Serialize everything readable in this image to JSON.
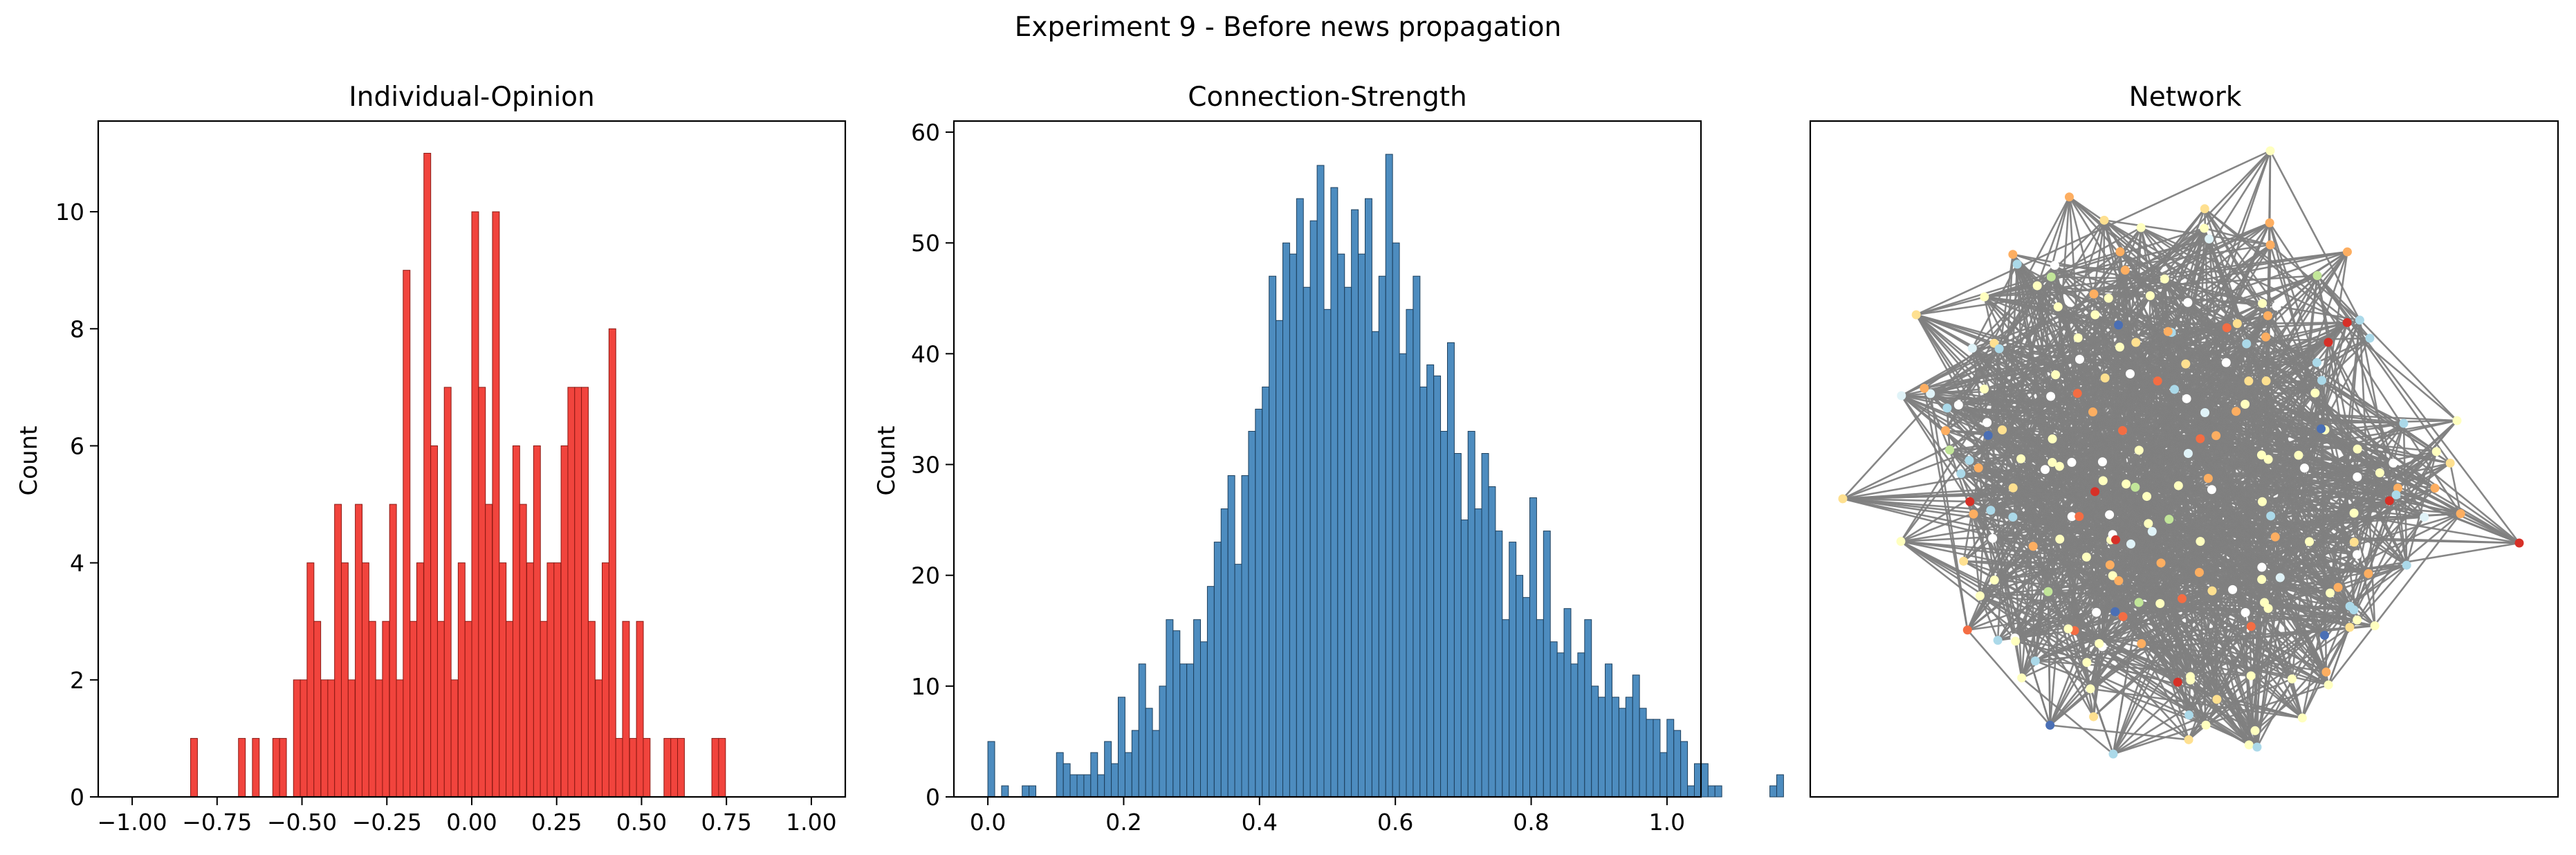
{
  "figure": {
    "suptitle": "Experiment 9 - Before news propagation"
  },
  "chart_data": [
    {
      "type": "bar",
      "title": "Individual-Opinion",
      "xlabel": "",
      "ylabel": "Count",
      "xlim": [
        -1.1,
        1.1
      ],
      "ylim": [
        0,
        11.55
      ],
      "bin_width": 0.0202,
      "xticks": [
        -1.0,
        -0.75,
        -0.5,
        -0.25,
        0.0,
        0.25,
        0.5,
        0.75,
        1.0
      ],
      "xtick_labels": [
        "−1.00",
        "−0.75",
        "−0.50",
        "−0.25",
        "0.00",
        "0.25",
        "0.50",
        "0.75",
        "1.00"
      ],
      "yticks": [
        0,
        2,
        4,
        6,
        8,
        10
      ],
      "ytick_labels": [
        "0",
        "2",
        "4",
        "6",
        "8",
        "10"
      ],
      "bar_color": "#f03028",
      "edge_color": "#8a1a14",
      "bins": [
        {
          "x": -0.828,
          "count": 1
        },
        {
          "x": -0.687,
          "count": 1
        },
        {
          "x": -0.646,
          "count": 1
        },
        {
          "x": -0.586,
          "count": 1
        },
        {
          "x": -0.566,
          "count": 1
        },
        {
          "x": -0.525,
          "count": 2
        },
        {
          "x": -0.505,
          "count": 2
        },
        {
          "x": -0.485,
          "count": 4
        },
        {
          "x": -0.465,
          "count": 3
        },
        {
          "x": -0.444,
          "count": 2
        },
        {
          "x": -0.424,
          "count": 2
        },
        {
          "x": -0.404,
          "count": 5
        },
        {
          "x": -0.384,
          "count": 4
        },
        {
          "x": -0.364,
          "count": 2
        },
        {
          "x": -0.343,
          "count": 5
        },
        {
          "x": -0.323,
          "count": 4
        },
        {
          "x": -0.303,
          "count": 3
        },
        {
          "x": -0.283,
          "count": 2
        },
        {
          "x": -0.263,
          "count": 3
        },
        {
          "x": -0.242,
          "count": 5
        },
        {
          "x": -0.222,
          "count": 2
        },
        {
          "x": -0.202,
          "count": 9
        },
        {
          "x": -0.182,
          "count": 3
        },
        {
          "x": -0.162,
          "count": 4
        },
        {
          "x": -0.141,
          "count": 11
        },
        {
          "x": -0.121,
          "count": 6
        },
        {
          "x": -0.101,
          "count": 3
        },
        {
          "x": -0.081,
          "count": 7
        },
        {
          "x": -0.061,
          "count": 2
        },
        {
          "x": -0.04,
          "count": 4
        },
        {
          "x": -0.02,
          "count": 3
        },
        {
          "x": 0.0,
          "count": 10
        },
        {
          "x": 0.02,
          "count": 7
        },
        {
          "x": 0.04,
          "count": 5
        },
        {
          "x": 0.061,
          "count": 10
        },
        {
          "x": 0.081,
          "count": 4
        },
        {
          "x": 0.101,
          "count": 3
        },
        {
          "x": 0.121,
          "count": 6
        },
        {
          "x": 0.141,
          "count": 5
        },
        {
          "x": 0.162,
          "count": 4
        },
        {
          "x": 0.182,
          "count": 6
        },
        {
          "x": 0.202,
          "count": 3
        },
        {
          "x": 0.222,
          "count": 4
        },
        {
          "x": 0.242,
          "count": 4
        },
        {
          "x": 0.263,
          "count": 6
        },
        {
          "x": 0.283,
          "count": 7
        },
        {
          "x": 0.303,
          "count": 7
        },
        {
          "x": 0.323,
          "count": 7
        },
        {
          "x": 0.343,
          "count": 3
        },
        {
          "x": 0.364,
          "count": 2
        },
        {
          "x": 0.384,
          "count": 4
        },
        {
          "x": 0.404,
          "count": 8
        },
        {
          "x": 0.424,
          "count": 1
        },
        {
          "x": 0.444,
          "count": 3
        },
        {
          "x": 0.465,
          "count": 1
        },
        {
          "x": 0.485,
          "count": 3
        },
        {
          "x": 0.505,
          "count": 1
        },
        {
          "x": 0.566,
          "count": 1
        },
        {
          "x": 0.586,
          "count": 1
        },
        {
          "x": 0.606,
          "count": 1
        },
        {
          "x": 0.707,
          "count": 1
        },
        {
          "x": 0.727,
          "count": 1
        }
      ]
    },
    {
      "type": "bar",
      "title": "Connection-Strength",
      "xlabel": "",
      "ylabel": "Count",
      "xlim": [
        -0.05,
        1.05
      ],
      "ylim": [
        0,
        61
      ],
      "bin_width": 0.0101,
      "xticks": [
        0.0,
        0.2,
        0.4,
        0.6,
        0.8,
        1.0
      ],
      "xtick_labels": [
        "0.0",
        "0.2",
        "0.4",
        "0.6",
        "0.8",
        "1.0"
      ],
      "yticks": [
        0,
        10,
        20,
        30,
        40,
        50,
        60
      ],
      "ytick_labels": [
        "0",
        "10",
        "20",
        "30",
        "40",
        "50",
        "60"
      ],
      "bar_color": "#3a7fb8",
      "edge_color": "#1d3f5c",
      "start": 0.0,
      "counts": [
        5,
        0,
        1,
        0,
        0,
        1,
        1,
        0,
        0,
        0,
        4,
        3,
        2,
        2,
        2,
        4,
        2,
        5,
        3,
        9,
        4,
        6,
        12,
        8,
        6,
        10,
        16,
        15,
        12,
        12,
        16,
        14,
        19,
        23,
        26,
        29,
        21,
        29,
        33,
        35,
        37,
        47,
        43,
        50,
        49,
        54,
        46,
        52,
        57,
        44,
        55,
        49,
        46,
        53,
        49,
        54,
        42,
        47,
        58,
        50,
        40,
        44,
        47,
        37,
        39,
        38,
        33,
        41,
        31,
        25,
        33,
        26,
        31,
        28,
        24,
        16,
        23,
        20,
        18,
        27,
        16,
        24,
        14,
        13,
        17,
        12,
        13,
        16,
        10,
        9,
        12,
        9,
        8,
        9,
        11,
        8,
        7,
        7,
        4,
        7,
        6,
        5,
        1,
        3,
        3,
        1,
        1,
        0,
        0,
        0,
        0,
        0,
        0,
        0,
        1,
        2
      ],
      "counts_note_suppressed": false
    },
    {
      "type": "network",
      "title": "Network",
      "edge_color": "#808080",
      "node_palette": [
        "#4a6fb5",
        "#abd9e9",
        "#e0f3f8",
        "#ffffbf",
        "#fee090",
        "#fdae61",
        "#f46d43",
        "#d73027",
        "#ffffff",
        "#c2e699"
      ]
    }
  ]
}
